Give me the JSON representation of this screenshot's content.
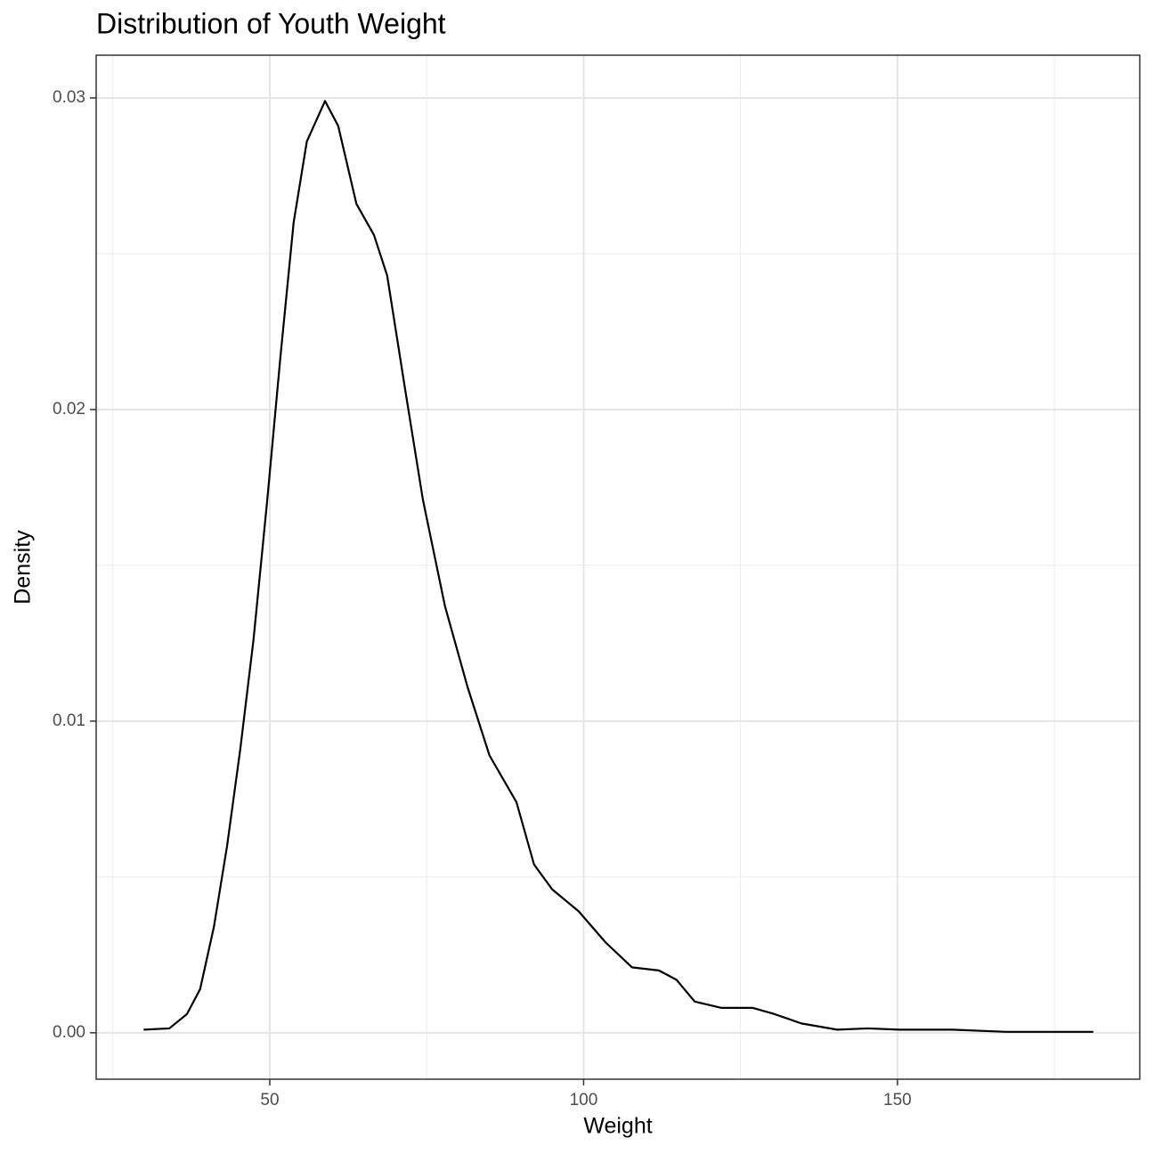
{
  "chart_data": {
    "type": "line",
    "title": "Distribution of Youth Weight",
    "x_label": "Weight",
    "y_label": "Density",
    "x": [
      29.9,
      34.0,
      36.8,
      38.9,
      41.1,
      43.2,
      45.3,
      47.4,
      49.6,
      51.7,
      53.8,
      55.9,
      58.8,
      60.9,
      63.8,
      66.6,
      68.7,
      71.6,
      74.4,
      77.9,
      81.5,
      85.0,
      89.3,
      92.1,
      95.0,
      99.2,
      103.5,
      107.7,
      112.0,
      114.8,
      117.7,
      121.9,
      126.9,
      130.4,
      134.7,
      140.4,
      145.3,
      150.3,
      158.8,
      167.3,
      181.2
    ],
    "series": [
      {
        "color": "#000000",
        "values": [
          0.0001,
          0.00014,
          0.0006,
          0.0014,
          0.0034,
          0.006,
          0.0091,
          0.0126,
          0.0171,
          0.0217,
          0.026,
          0.0286,
          0.0299,
          0.0291,
          0.0266,
          0.0256,
          0.0243,
          0.0206,
          0.0171,
          0.0137,
          0.0111,
          0.0089,
          0.0074,
          0.0054,
          0.0046,
          0.0039,
          0.0029,
          0.0021,
          0.002,
          0.0017,
          0.001,
          0.0008,
          0.0008,
          0.0006,
          0.0003,
          0.0001,
          0.00014,
          0.0001,
          0.0001,
          3e-05,
          3e-05
        ]
      }
    ],
    "xlim": [
      22.34,
      188.6
    ],
    "ylim": [
      -0.00149,
      0.03137
    ],
    "xticks": [
      50,
      100,
      150
    ],
    "yticks": [
      {
        "value": 0,
        "label": "0.00"
      },
      0.01,
      0.02,
      0.03
    ],
    "x_minor_ticks": [
      25,
      75,
      125,
      175
    ],
    "y_minor_ticks": [
      0.005,
      0.015,
      0.025
    ],
    "grid": true
  }
}
